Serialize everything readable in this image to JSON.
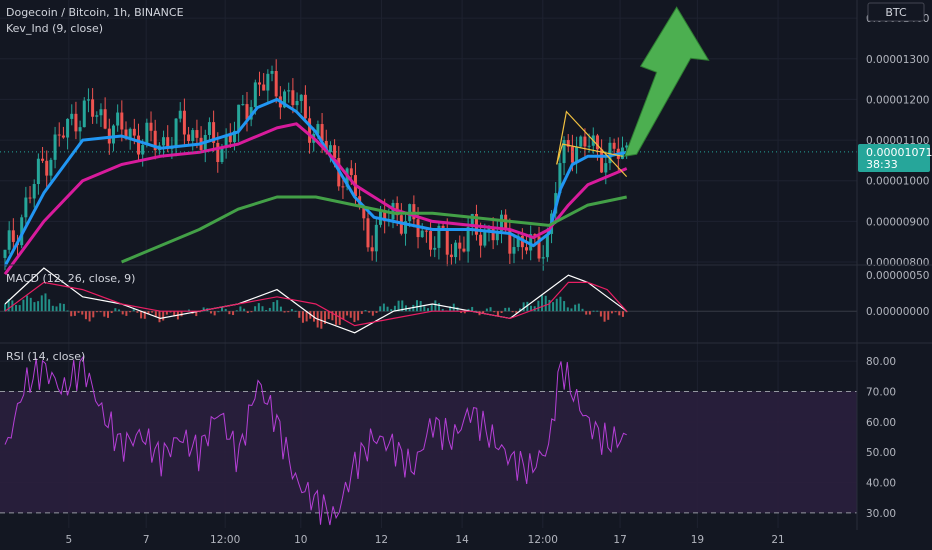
{
  "header": {
    "title": "Dogecoin / Bitcoin, 1h, BINANCE",
    "indicator": "Kev_Ind (9, close)"
  },
  "currency": "BTC",
  "price_badge": {
    "value": "0.00001071",
    "countdown": "38:33"
  },
  "panes": {
    "macd_label": "MACD (12, 26, close, 9)",
    "rsi_label": "RSI (14, close)"
  },
  "colors": {
    "background": "#131722",
    "grid": "#1e2230",
    "up": "#26a69a",
    "down": "#ef5350",
    "ema_fast": "#2196f3",
    "ema_mid": "#d81b9c",
    "ema_slow": "#43a047",
    "pennant": "#f0c040",
    "arrow": "#4caf50",
    "macd_line": "#ffffff",
    "macd_signal": "#e91e63",
    "rsi_line": "#b53fd6",
    "rsi_band": "#2a1f3d",
    "price_badge": "#26a69a"
  },
  "chart_data": [
    {
      "type": "candlestick",
      "title": "Dogecoin / Bitcoin, 1h, BINANCE",
      "x_ticks": [
        "5",
        "7",
        "12:00",
        "10",
        "12",
        "14",
        "12:00",
        "17",
        "19",
        "21"
      ],
      "y_ticks": [
        "0.00001400",
        "0.00001300",
        "0.00001200",
        "0.00001100",
        "0.00001000",
        "0.00000900",
        "0.00000800"
      ],
      "ylim": [
        8e-06,
        1.42e-05
      ],
      "last_price": 1.071e-05,
      "series": [
        {
          "name": "close",
          "x": [
            0,
            1,
            2,
            3,
            4,
            4.5,
            5,
            5.5,
            6,
            6.5,
            7,
            7.5,
            8,
            8.5,
            9,
            9.3,
            9.6,
            10,
            10.5,
            11,
            11.5,
            12,
            12.5,
            13,
            13.6,
            14,
            14.2,
            14.5,
            14.8,
            15,
            15.3,
            15.6,
            16.0
          ],
          "values": [
            8.1e-06,
            1.05e-05,
            1.18e-05,
            1.12e-05,
            1.09e-05,
            1.13e-05,
            1.11e-05,
            1.08e-05,
            1.14e-05,
            1.24e-05,
            1.23e-05,
            1.19e-05,
            1.12e-05,
            1.04e-05,
            9.8e-06,
            8.6e-06,
            8.8e-06,
            9.3e-06,
            8.9e-06,
            8.6e-06,
            8.3e-06,
            8.7e-06,
            8.8e-06,
            8.6e-06,
            8.3e-06,
            8.6e-06,
            1e-05,
            1.1e-05,
            1.08e-05,
            1.09e-05,
            1.07e-05,
            1.06e-05,
            1.07e-05
          ]
        },
        {
          "name": "ema_fast",
          "x": [
            0,
            1,
            2,
            3,
            4,
            5,
            6,
            6.5,
            7,
            7.5,
            8,
            8.5,
            9,
            9.5,
            10,
            11,
            12,
            13,
            13.6,
            14,
            14.3,
            14.6,
            15,
            15.5,
            16.0
          ],
          "values": [
            7.9e-06,
            9.7e-06,
            1.1e-05,
            1.11e-05,
            1.08e-05,
            1.09e-05,
            1.12e-05,
            1.18e-05,
            1.2e-05,
            1.17e-05,
            1.12e-05,
            1.04e-05,
            9.6e-06,
            9.1e-06,
            9e-06,
            8.8e-06,
            8.8e-06,
            8.7e-06,
            8.4e-06,
            8.7e-06,
            9.8e-06,
            1.04e-05,
            1.06e-05,
            1.06e-05,
            1.07e-05
          ]
        },
        {
          "name": "ema_mid",
          "x": [
            0,
            1,
            2,
            3,
            4,
            5,
            6,
            7,
            7.5,
            8,
            8.5,
            9,
            10,
            11,
            12,
            13,
            13.6,
            14,
            14.5,
            15,
            15.5,
            16.0
          ],
          "values": [
            7.7e-06,
            9e-06,
            1e-05,
            1.04e-05,
            1.06e-05,
            1.07e-05,
            1.09e-05,
            1.13e-05,
            1.14e-05,
            1.1e-05,
            1.05e-05,
            9.9e-06,
            9.3e-06,
            9e-06,
            8.9e-06,
            8.8e-06,
            8.6e-06,
            8.8e-06,
            9.4e-06,
            9.9e-06,
            1.01e-05,
            1.03e-05
          ]
        },
        {
          "name": "ema_slow",
          "x": [
            3,
            4,
            5,
            6,
            7,
            8,
            9,
            10,
            11,
            12,
            13,
            14,
            15,
            16.0
          ],
          "values": [
            8e-06,
            8.4e-06,
            8.8e-06,
            9.3e-06,
            9.6e-06,
            9.6e-06,
            9.4e-06,
            9.2e-06,
            9.2e-06,
            9.1e-06,
            9e-06,
            8.9e-06,
            9.4e-06,
            9.6e-06
          ]
        }
      ],
      "annotations": [
        {
          "type": "pennant",
          "points_x": [
            14.2,
            14.45,
            16.0,
            14.35
          ],
          "points_y": [
            1.04e-05,
            1.17e-05,
            1.01e-05,
            1.09e-05
          ]
        },
        {
          "type": "arrow",
          "direction": "up"
        }
      ]
    },
    {
      "type": "histogram",
      "title": "MACD (12, 26, close, 9)",
      "y_ticks": [
        "0.00000050",
        "0.00000000"
      ],
      "ylim": [
        -4e-07,
        6e-07
      ],
      "x": [
        0,
        1,
        2,
        3,
        4,
        5,
        6,
        7,
        8,
        9,
        10,
        11,
        12,
        13,
        14,
        14.5,
        15,
        15.5,
        16.0
      ],
      "series": [
        {
          "name": "macd",
          "values": [
            1e-07,
            6e-07,
            2e-07,
            1e-07,
            -1e-07,
            0.0,
            1e-07,
            3e-07,
            -1e-07,
            -3e-07,
            0.0,
            1e-07,
            0.0,
            -1e-07,
            3e-07,
            5e-07,
            4e-07,
            2e-07,
            0.0
          ]
        },
        {
          "name": "signal",
          "values": [
            0.0,
            4e-07,
            3e-07,
            1e-07,
            0.0,
            0.0,
            1e-07,
            2e-07,
            1e-07,
            -2e-07,
            -1e-07,
            0.0,
            0.0,
            -1e-07,
            1e-07,
            4e-07,
            4e-07,
            3e-07,
            0.0
          ]
        }
      ]
    },
    {
      "type": "line",
      "title": "RSI (14, close)",
      "y_ticks": [
        "80.00",
        "70.00",
        "60.00",
        "50.00",
        "40.00",
        "30.00"
      ],
      "ylim": [
        25,
        85
      ],
      "bands": [
        30,
        70
      ],
      "x": [
        0,
        0.5,
        1,
        1.5,
        2,
        2.5,
        3,
        3.5,
        4,
        4.5,
        5,
        5.5,
        6,
        6.5,
        7,
        7.5,
        8,
        8.5,
        9,
        9.5,
        10,
        10.5,
        11,
        11.5,
        12,
        12.5,
        13,
        13.5,
        14,
        14.3,
        14.6,
        15,
        15.5,
        16.0
      ],
      "series": [
        {
          "name": "rsi",
          "values": [
            50,
            72,
            78,
            70,
            79,
            63,
            52,
            56,
            48,
            55,
            50,
            64,
            48,
            73,
            60,
            40,
            34,
            28,
            46,
            55,
            52,
            44,
            60,
            54,
            64,
            55,
            48,
            44,
            52,
            79,
            70,
            60,
            53,
            55
          ]
        }
      ]
    }
  ]
}
